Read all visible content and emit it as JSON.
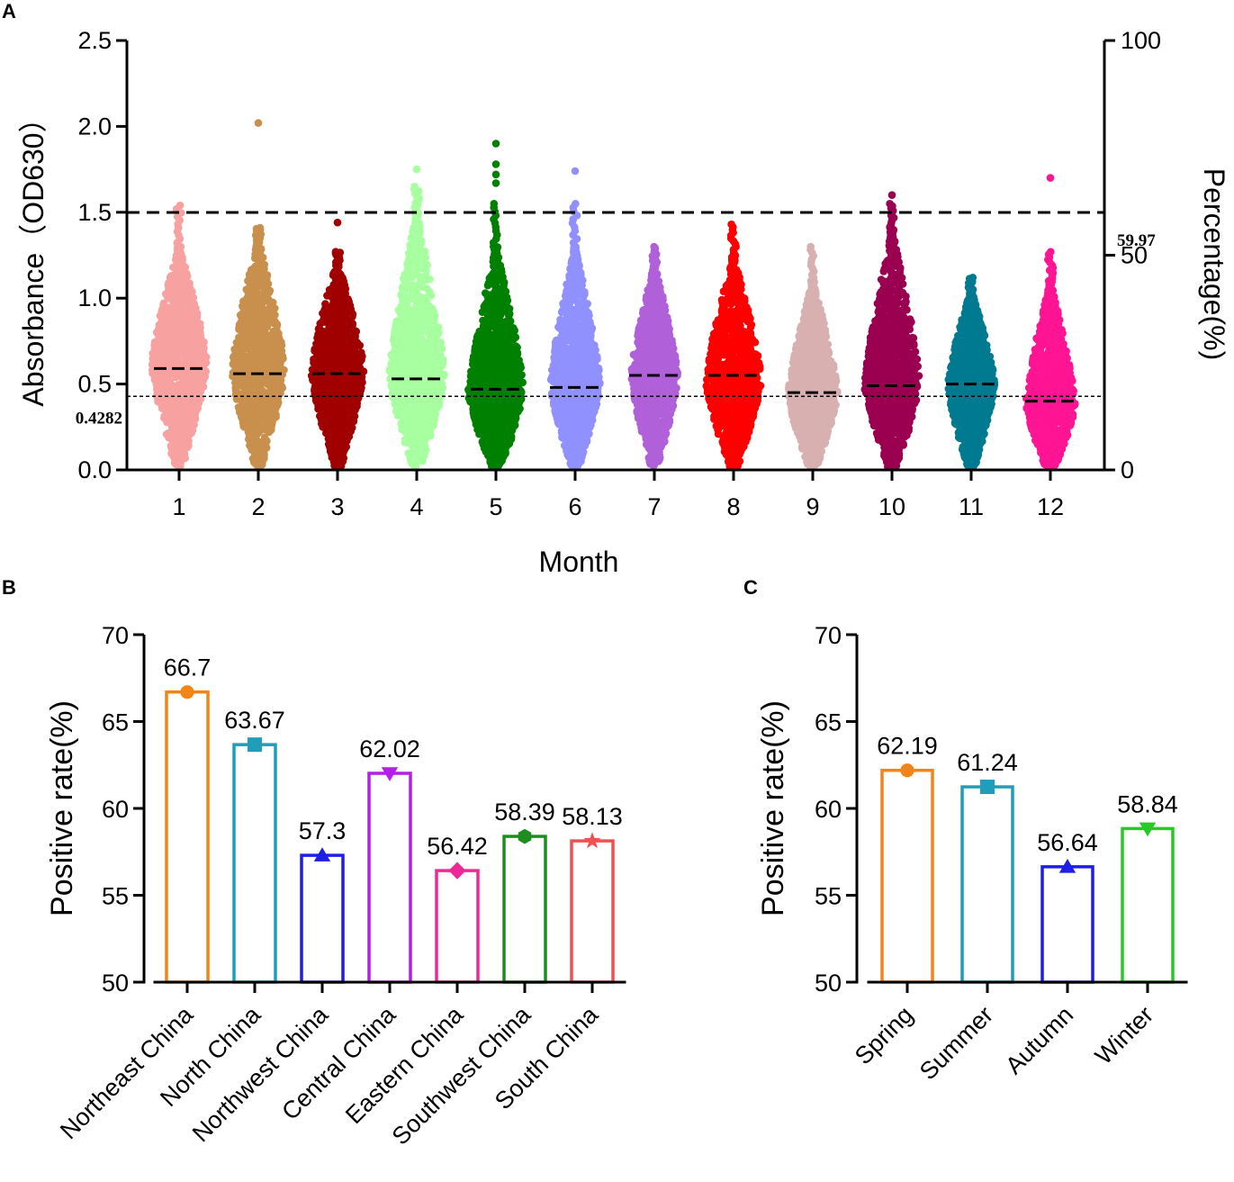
{
  "chart_data": [
    {
      "panel": "A",
      "type": "scatter",
      "subtype": "beeswarm",
      "title": "",
      "xlabel": "Month",
      "ylabel": "Absorbance（OD630）",
      "y2label": "Percentage(%)",
      "ylim": [
        0,
        2.5
      ],
      "y2lim": [
        0,
        100
      ],
      "yticks": [
        "0.0",
        "0.5",
        "1.0",
        "1.5",
        "2.0",
        "2.5"
      ],
      "y2ticks": [
        "0",
        "50",
        "100"
      ],
      "reference_lines": [
        {
          "name": "cutoff",
          "value": 0.4282,
          "label": "0.4282",
          "style": "dotted"
        },
        {
          "name": "percentage",
          "y2_value": 59.97,
          "label": "59.97",
          "style": "dashed"
        }
      ],
      "groups": [
        {
          "label": "1",
          "color": "#F7A1A1",
          "median": 0.59,
          "max": 1.54,
          "top_points": [],
          "width": 1.0,
          "core_max": 1.3,
          "peak": 0.62
        },
        {
          "label": "2",
          "color": "#C8904C",
          "median": 0.56,
          "max": 1.41,
          "top_points": [
            2.02
          ],
          "width": 0.95,
          "core_max": 1.35,
          "peak": 0.58
        },
        {
          "label": "3",
          "color": "#A00000",
          "median": 0.56,
          "max": 1.27,
          "top_points": [
            1.44
          ],
          "width": 0.95,
          "core_max": 1.22,
          "peak": 0.58
        },
        {
          "label": "4",
          "color": "#A8FFA0",
          "median": 0.53,
          "max": 1.65,
          "top_points": [
            1.75
          ],
          "width": 1.0,
          "core_max": 1.5,
          "peak": 0.55
        },
        {
          "label": "5",
          "color": "#008000",
          "median": 0.47,
          "max": 1.55,
          "top_points": [
            1.67,
            1.72,
            1.78,
            1.9
          ],
          "width": 1.0,
          "core_max": 1.3,
          "peak": 0.45
        },
        {
          "label": "6",
          "color": "#9090FF",
          "median": 0.48,
          "max": 1.55,
          "top_points": [
            1.74
          ],
          "width": 0.9,
          "core_max": 1.3,
          "peak": 0.5
        },
        {
          "label": "7",
          "color": "#B060D8",
          "median": 0.55,
          "max": 1.3,
          "top_points": [],
          "width": 0.85,
          "core_max": 1.2,
          "peak": 0.55
        },
        {
          "label": "8",
          "color": "#FF0000",
          "median": 0.55,
          "max": 1.43,
          "top_points": [],
          "width": 1.0,
          "core_max": 1.25,
          "peak": 0.52
        },
        {
          "label": "9",
          "color": "#D8B0B0",
          "median": 0.45,
          "max": 1.3,
          "top_points": [],
          "width": 0.9,
          "core_max": 1.1,
          "peak": 0.45
        },
        {
          "label": "10",
          "color": "#9B0050",
          "median": 0.49,
          "max": 1.55,
          "top_points": [
            1.6
          ],
          "width": 1.0,
          "core_max": 1.4,
          "peak": 0.5
        },
        {
          "label": "11",
          "color": "#007A90",
          "median": 0.5,
          "max": 1.12,
          "top_points": [],
          "width": 0.85,
          "core_max": 1.05,
          "peak": 0.5
        },
        {
          "label": "12",
          "color": "#FF1493",
          "median": 0.4,
          "max": 1.27,
          "top_points": [
            1.7
          ],
          "width": 0.9,
          "core_max": 1.1,
          "peak": 0.38
        }
      ]
    },
    {
      "panel": "B",
      "type": "bar",
      "title": "",
      "xlabel": "",
      "ylabel": "Positive rate(%)",
      "ylim": [
        50,
        70
      ],
      "yticks": [
        "50",
        "55",
        "60",
        "65",
        "70"
      ],
      "categories": [
        "Northeast China",
        "North China",
        "Northwest China",
        "Central China",
        "Eastern China",
        "Southwest China",
        "South China"
      ],
      "values": [
        66.7,
        63.67,
        57.3,
        62.02,
        56.42,
        58.39,
        58.13
      ],
      "value_labels": [
        "66.7",
        "63.67",
        "57.3",
        "62.02",
        "56.42",
        "58.39",
        "58.13"
      ],
      "colors": [
        "#F28418",
        "#1E9EB9",
        "#1E1EE6",
        "#B41EE6",
        "#F02896",
        "#1E8C1E",
        "#F05050"
      ],
      "markers": [
        "circle",
        "square",
        "triangle-up",
        "triangle-down",
        "diamond",
        "hexagon",
        "star"
      ]
    },
    {
      "panel": "C",
      "type": "bar",
      "title": "",
      "xlabel": "",
      "ylabel": "Positive rate(%)",
      "ylim": [
        50,
        70
      ],
      "yticks": [
        "50",
        "55",
        "60",
        "65",
        "70"
      ],
      "categories": [
        "Spring",
        "Summer",
        "Autumn",
        "Winter"
      ],
      "values": [
        62.19,
        61.24,
        56.64,
        58.84
      ],
      "value_labels": [
        "62.19",
        "61.24",
        "56.64",
        "58.84"
      ],
      "colors": [
        "#F28418",
        "#1E9EB9",
        "#1E1EE6",
        "#28C828"
      ],
      "markers": [
        "circle",
        "square",
        "triangle-up",
        "triangle-down"
      ]
    }
  ],
  "panel_labels": [
    "A",
    "B",
    "C"
  ]
}
